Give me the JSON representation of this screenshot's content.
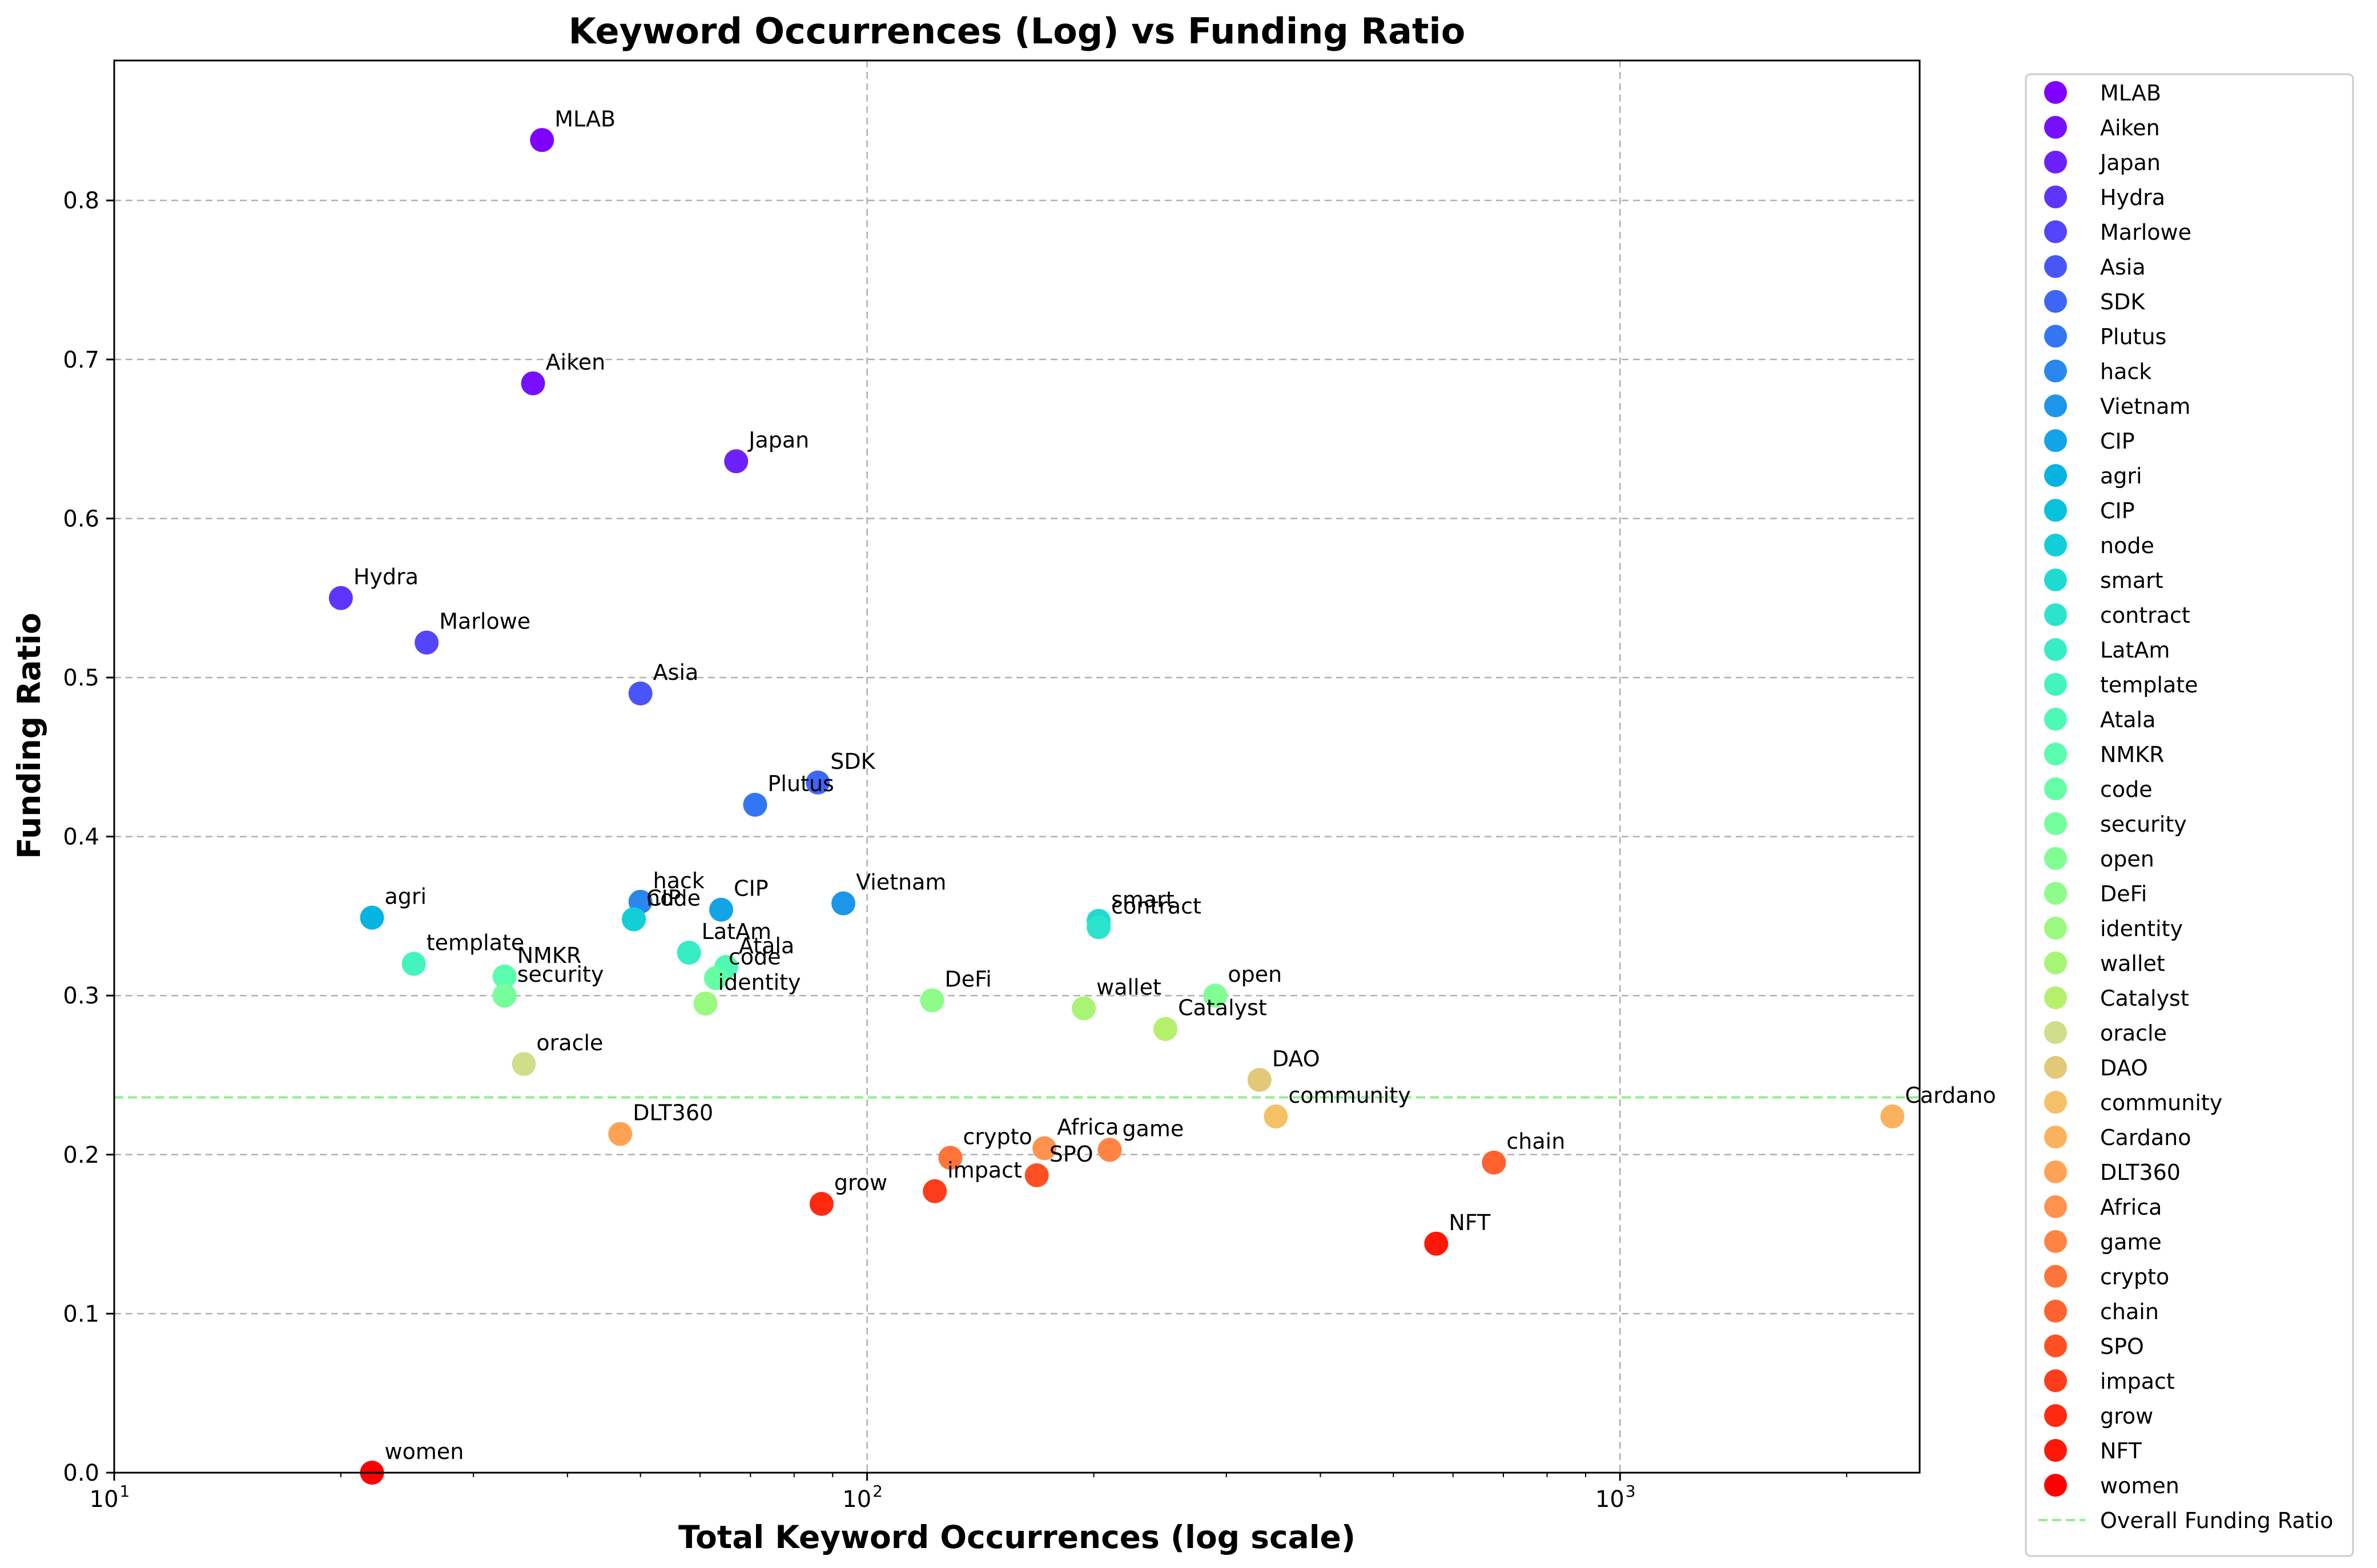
{
  "chart_data": {
    "type": "scatter",
    "title": "Keyword Occurrences (Log) vs Funding Ratio",
    "xlabel": "Total Keyword Occurrences (log scale)",
    "ylabel": "Funding Ratio",
    "x_scale": "log",
    "xlim": [
      10,
      2500
    ],
    "ylim": [
      0,
      0.888
    ],
    "x_ticks": [
      {
        "value": 10,
        "base": "10",
        "exp": "1"
      },
      {
        "value": 100,
        "base": "10",
        "exp": "2"
      },
      {
        "value": 1000,
        "base": "10",
        "exp": "3"
      }
    ],
    "y_ticks": [
      "0.0",
      "0.1",
      "0.2",
      "0.3",
      "0.4",
      "0.5",
      "0.6",
      "0.7",
      "0.8"
    ],
    "grid": true,
    "legend_position": "outside right",
    "colormap": "rainbow",
    "points": [
      {
        "label": "MLAB",
        "x": 37,
        "y": 0.838,
        "color": "#8000ff"
      },
      {
        "label": "Aiken",
        "x": 36,
        "y": 0.685,
        "color": "#7610ff"
      },
      {
        "label": "Japan",
        "x": 67,
        "y": 0.636,
        "color": "#6c20fe"
      },
      {
        "label": "Hydra",
        "x": 20,
        "y": 0.55,
        "color": "#5e34fd"
      },
      {
        "label": "Marlowe",
        "x": 26,
        "y": 0.522,
        "color": "#5444fb"
      },
      {
        "label": "Asia",
        "x": 50,
        "y": 0.49,
        "color": "#4856f9"
      },
      {
        "label": "SDK",
        "x": 86,
        "y": 0.434,
        "color": "#3e66f6"
      },
      {
        "label": "Plutus",
        "x": 71,
        "y": 0.42,
        "color": "#3276f3"
      },
      {
        "label": "hack",
        "x": 50,
        "y": 0.359,
        "color": "#2888ef"
      },
      {
        "label": "Vietnam",
        "x": 93,
        "y": 0.358,
        "color": "#1c96eb"
      },
      {
        "label": "CIP",
        "x": 64,
        "y": 0.354,
        "color": "#12a4e7"
      },
      {
        "label": "agri",
        "x": 22,
        "y": 0.349,
        "color": "#06b4e2"
      },
      {
        "label": "CIP",
        "x": 49,
        "y": 0.348,
        "color": "#06c2dd"
      },
      {
        "label": "node",
        "x": 49,
        "y": 0.348,
        "color": "#12ced8"
      },
      {
        "label": "smart",
        "x": 203,
        "y": 0.347,
        "color": "#1edbd2"
      },
      {
        "label": "contract",
        "x": 203,
        "y": 0.343,
        "color": "#2ae5cb"
      },
      {
        "label": "LatAm",
        "x": 58,
        "y": 0.327,
        "color": "#36edc4"
      },
      {
        "label": "template",
        "x": 25,
        "y": 0.32,
        "color": "#42f4bd"
      },
      {
        "label": "Atala",
        "x": 65,
        "y": 0.318,
        "color": "#4ef8b6"
      },
      {
        "label": "NMKR",
        "x": 33,
        "y": 0.312,
        "color": "#5afcae"
      },
      {
        "label": "code",
        "x": 63,
        "y": 0.311,
        "color": "#66fea5"
      },
      {
        "label": "security",
        "x": 33,
        "y": 0.3,
        "color": "#74fe9c"
      },
      {
        "label": "open",
        "x": 290,
        "y": 0.3,
        "color": "#80fe93"
      },
      {
        "label": "DeFi",
        "x": 122,
        "y": 0.297,
        "color": "#8efc89"
      },
      {
        "label": "identity",
        "x": 61,
        "y": 0.295,
        "color": "#9af97f"
      },
      {
        "label": "wallet",
        "x": 194,
        "y": 0.292,
        "color": "#a8f575"
      },
      {
        "label": "Catalyst",
        "x": 249,
        "y": 0.279,
        "color": "#b4f06b"
      },
      {
        "label": "oracle",
        "x": 35,
        "y": 0.257,
        "color": "#d0dd8a"
      },
      {
        "label": "DAO",
        "x": 332,
        "y": 0.247,
        "color": "#e3c878"
      },
      {
        "label": "community",
        "x": 349,
        "y": 0.224,
        "color": "#f5c167"
      },
      {
        "label": "Cardano",
        "x": 2300,
        "y": 0.224,
        "color": "#fbb25f"
      },
      {
        "label": "DLT360",
        "x": 47,
        "y": 0.213,
        "color": "#ffa256"
      },
      {
        "label": "Africa",
        "x": 172,
        "y": 0.204,
        "color": "#ff924c"
      },
      {
        "label": "game",
        "x": 210,
        "y": 0.203,
        "color": "#ff8442"
      },
      {
        "label": "crypto",
        "x": 129,
        "y": 0.198,
        "color": "#ff7438"
      },
      {
        "label": "chain",
        "x": 680,
        "y": 0.195,
        "color": "#ff622e"
      },
      {
        "label": "SPO",
        "x": 168,
        "y": 0.187,
        "color": "#ff5024"
      },
      {
        "label": "impact",
        "x": 123,
        "y": 0.177,
        "color": "#ff3c1a"
      },
      {
        "label": "grow",
        "x": 87,
        "y": 0.169,
        "color": "#ff2a10"
      },
      {
        "label": "NFT",
        "x": 570,
        "y": 0.144,
        "color": "#ff1808"
      },
      {
        "label": "women",
        "x": 22,
        "y": 0.0,
        "color": "#ff0000"
      }
    ],
    "reference_line": {
      "label": "Overall Funding Ratio",
      "y": 0.236,
      "color": "#90ee90"
    }
  }
}
